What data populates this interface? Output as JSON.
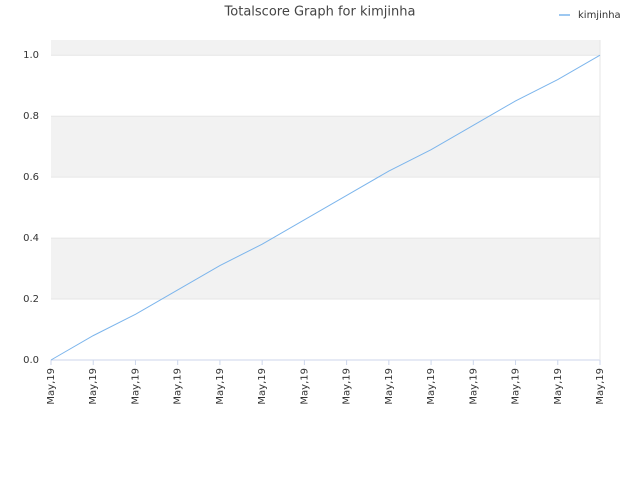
{
  "chart_data": {
    "type": "line",
    "title": "Totalscore Graph for kimjinha",
    "categories": [
      "May,19",
      "May,19",
      "May,19",
      "May,19",
      "May,19",
      "May,19",
      "May,19",
      "May,19",
      "May,19",
      "May,19",
      "May,19",
      "May,19",
      "May,19",
      "May,19"
    ],
    "series": [
      {
        "name": "kimjinha",
        "color": "#7cb5ec",
        "values": [
          0,
          0.08,
          0.15,
          0.23,
          0.31,
          0.38,
          0.46,
          0.54,
          0.62,
          0.69,
          0.77,
          0.85,
          0.92,
          1
        ]
      }
    ],
    "ylim": [
      0,
      1.05
    ],
    "yticks": [
      {
        "value": 0,
        "label": "0.0"
      },
      {
        "value": 0.2,
        "label": "0.2"
      },
      {
        "value": 0.4,
        "label": "0.4"
      },
      {
        "value": 0.6,
        "label": "0.6"
      },
      {
        "value": 0.8,
        "label": "0.8"
      },
      {
        "value": 1,
        "label": "1.0"
      }
    ],
    "grid": true,
    "legend": "top-right"
  }
}
